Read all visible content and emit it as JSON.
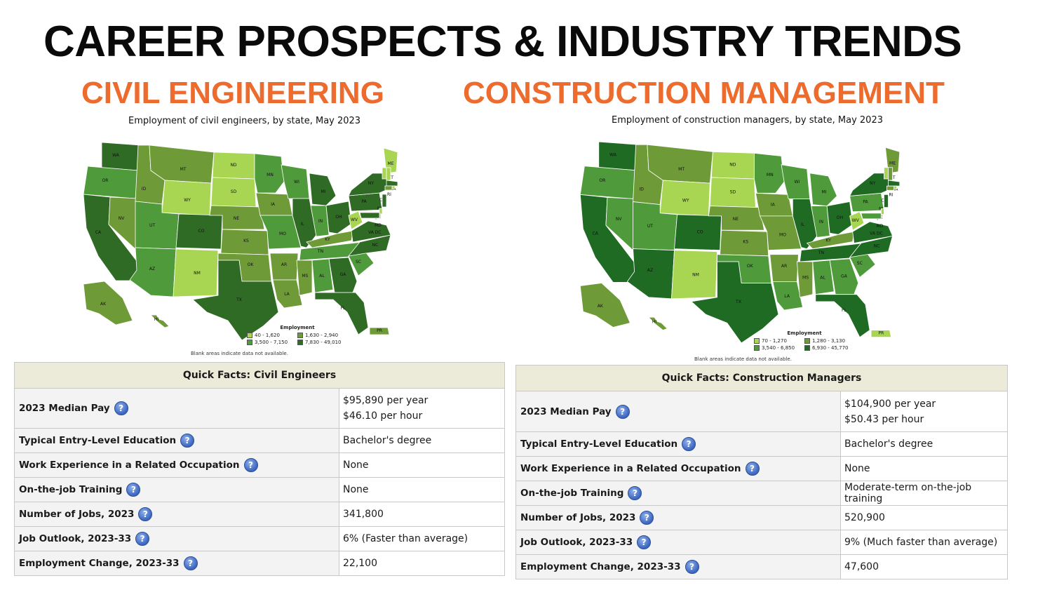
{
  "slide": {
    "title": "CAREER PROSPECTS & INDUSTRY TRENDS"
  },
  "left": {
    "heading": "CIVIL ENGINEERING",
    "map_caption": "Employment of civil engineers, by state, May 2023",
    "legend": {
      "title": "Employment",
      "items": [
        "40 - 1,620",
        "1,630 - 2,940",
        "3,500 - 7,150",
        "7,830 - 49,010"
      ],
      "colors": [
        "#a8d653",
        "#6e9b37",
        "#4f9a3a",
        "#2f6b24"
      ]
    },
    "blank_note": "Blank areas indicate data not available.",
    "facts": {
      "header": "Quick Facts: Civil Engineers",
      "rows": [
        {
          "label": "2023 Median Pay",
          "value": "$95,890 per year",
          "value2": "$46.10 per hour"
        },
        {
          "label": "Typical Entry-Level Education",
          "value": "Bachelor's degree"
        },
        {
          "label": "Work Experience in a Related Occupation",
          "value": "None"
        },
        {
          "label": "On-the-job Training",
          "value": "None"
        },
        {
          "label": "Number of Jobs, 2023",
          "value": "341,800"
        },
        {
          "label": "Job Outlook, 2023-33",
          "value": "6% (Faster than average)"
        },
        {
          "label": "Employment Change, 2023-33",
          "value": "22,100"
        }
      ]
    }
  },
  "right": {
    "heading": "CONSTRUCTION MANAGEMENT",
    "map_caption": "Employment of construction managers, by state, May 2023",
    "legend": {
      "title": "Employment",
      "items": [
        "70 - 1,270",
        "1,280 - 3,130",
        "3,540 - 6,850",
        "6,930 - 45,770"
      ],
      "colors": [
        "#a8d653",
        "#6e9b37",
        "#4f9a3a",
        "#1f6b23"
      ]
    },
    "blank_note": "Blank areas indicate data not available.",
    "facts": {
      "header": "Quick Facts: Construction Managers",
      "rows": [
        {
          "label": "2023 Median Pay",
          "value": "$104,900 per year",
          "value2": "$50.43 per hour"
        },
        {
          "label": "Typical Entry-Level Education",
          "value": "Bachelor's degree"
        },
        {
          "label": "Work Experience in a Related Occupation",
          "value": "None"
        },
        {
          "label": "On-the-job Training",
          "value": "Moderate-term on-the-job training"
        },
        {
          "label": "Number of Jobs, 2023",
          "value": "520,900"
        },
        {
          "label": "Job Outlook, 2023-33",
          "value": "9% (Much faster than average)"
        },
        {
          "label": "Employment Change, 2023-33",
          "value": "47,600"
        }
      ]
    }
  },
  "help_icon_glyph": "?",
  "state_labels": [
    "WA",
    "OR",
    "CA",
    "NV",
    "ID",
    "MT",
    "WY",
    "UT",
    "AZ",
    "NM",
    "CO",
    "ND",
    "SD",
    "NE",
    "KS",
    "OK",
    "TX",
    "MN",
    "IA",
    "MO",
    "AR",
    "LA",
    "WI",
    "IL",
    "MI",
    "IN",
    "OH",
    "KY",
    "TN",
    "MS",
    "AL",
    "GA",
    "FL",
    "SC",
    "NC",
    "VA",
    "WV",
    "PA",
    "NY",
    "ME",
    "VT",
    "NH",
    "MA",
    "RI",
    "CT",
    "NJ",
    "DE",
    "MD",
    "DC",
    "AK",
    "HI",
    "PR"
  ]
}
